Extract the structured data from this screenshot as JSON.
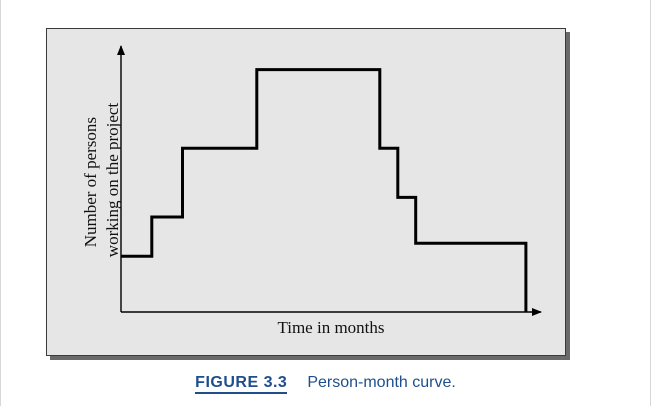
{
  "caption": {
    "number": "FIGURE 3.3",
    "text": "Person-month  curve."
  },
  "chart_data": {
    "type": "line",
    "title": "",
    "xlabel": "Time in months",
    "ylabel_lines": [
      "Number of persons",
      "working on the project"
    ],
    "step": true,
    "xlim": [
      0,
      16
    ],
    "ylim": [
      0,
      8
    ],
    "ticks": "none",
    "grid": false,
    "series": [
      {
        "x": [
          0,
          1.2,
          1.2,
          2.4,
          2.4,
          5.3,
          5.3,
          10.1,
          10.1,
          10.8,
          10.8,
          11.5,
          11.5,
          15.8,
          15.8
        ],
        "y": [
          1.7,
          1.7,
          2.9,
          2.9,
          5.0,
          5.0,
          7.4,
          7.4,
          5.0,
          5.0,
          3.5,
          3.5,
          2.1,
          2.1,
          0
        ]
      }
    ],
    "colors": {
      "line": "#000000",
      "panel": "#e6e6e6",
      "caption": "#1e4f8c"
    }
  }
}
